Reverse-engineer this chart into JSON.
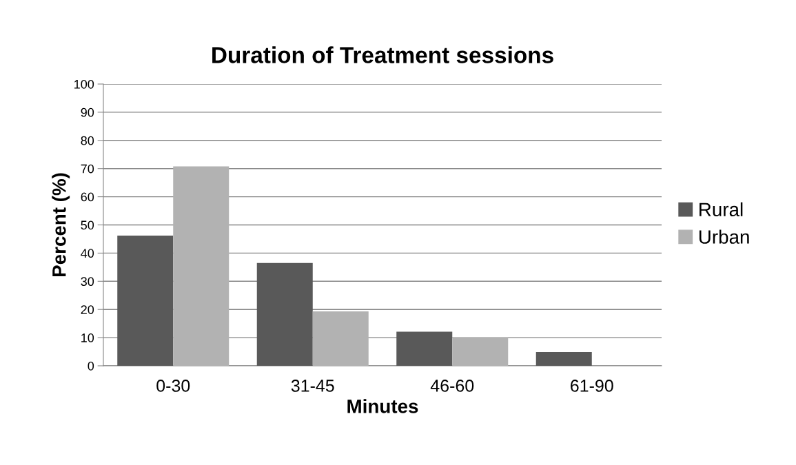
{
  "chart_data": {
    "type": "bar",
    "title": "Duration of Treatment sessions",
    "xlabel": "Minutes",
    "ylabel": "Percent (%)",
    "categories": [
      "0-30",
      "31-45",
      "46-60",
      "61-90"
    ],
    "series": [
      {
        "name": "Rural",
        "color": "#595959",
        "values": [
          46.2,
          36.5,
          12.1,
          4.9
        ]
      },
      {
        "name": "Urban",
        "color": "#b2b2b2",
        "values": [
          70.8,
          19.3,
          10.0,
          0
        ]
      }
    ],
    "ylim": [
      0,
      100
    ],
    "yticks": [
      0,
      10,
      20,
      30,
      40,
      50,
      60,
      70,
      80,
      90,
      100
    ],
    "grid": "y",
    "legend": "right"
  }
}
